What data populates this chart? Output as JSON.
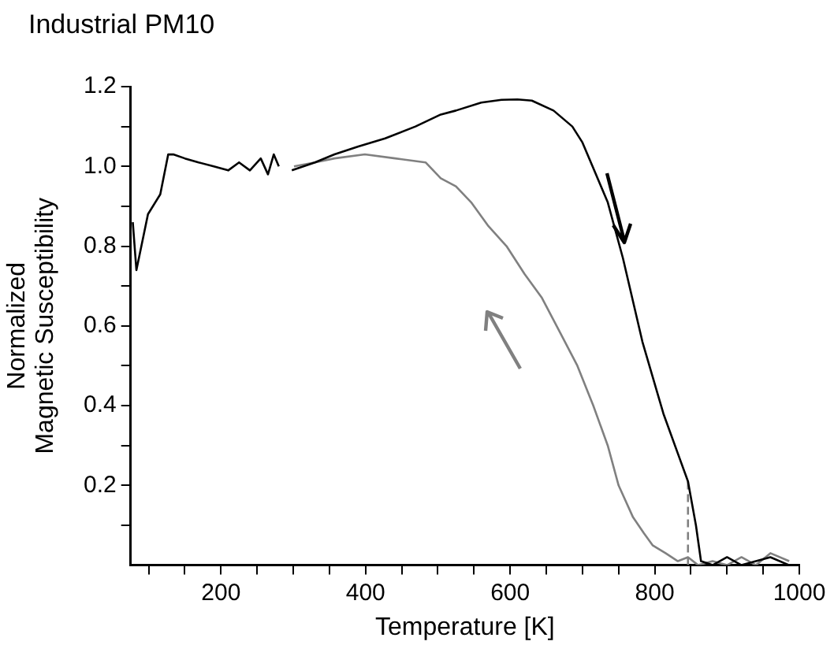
{
  "chart_data": {
    "type": "line",
    "title": "Industrial PM10",
    "xlabel": "Temperature [K]",
    "ylabel": "Normalized Magnetic Susceptibility",
    "marker": "none",
    "grid": false,
    "legend": false,
    "xlim": [
      75,
      1000
    ],
    "ylim": [
      0,
      1.2
    ],
    "xticks": [
      {
        "value": 100,
        "label": null
      },
      {
        "value": 150,
        "label": null
      },
      200,
      {
        "value": 250,
        "label": null
      },
      {
        "value": 300,
        "label": null
      },
      {
        "value": 350,
        "label": null
      },
      400,
      {
        "value": 450,
        "label": null
      },
      {
        "value": 500,
        "label": null
      },
      {
        "value": 550,
        "label": null
      },
      600,
      {
        "value": 650,
        "label": null
      },
      {
        "value": 700,
        "label": null
      },
      {
        "value": 750,
        "label": null
      },
      800,
      {
        "value": 850,
        "label": null
      },
      {
        "value": 900,
        "label": null
      },
      {
        "value": 950,
        "label": null
      },
      1000
    ],
    "yticks": [
      {
        "value": 0.1,
        "label": null
      },
      0.2,
      {
        "value": 0.3,
        "label": null
      },
      0.4,
      {
        "value": 0.5,
        "label": null
      },
      0.6,
      {
        "value": 0.7,
        "label": null
      },
      0.8,
      {
        "value": 0.9,
        "label": null
      },
      {
        "value": 1.0,
        "label": "1.0"
      },
      {
        "value": 1.1,
        "label": null
      },
      1.2
    ],
    "series": [
      {
        "color": "#000000",
        "line_style": "solid",
        "x": [
          78,
          83,
          99,
          116,
          127,
          134,
          150,
          169,
          190,
          210,
          225,
          240,
          255,
          265,
          273,
          280,
          290,
          298,
          330,
          357,
          390,
          427,
          469,
          504,
          525,
          560,
          588,
          610,
          630,
          660,
          686,
          700,
          714,
          735,
          756,
          783,
          812,
          832,
          846,
          857,
          864,
          880,
          900,
          920,
          940,
          960,
          986
        ],
        "values": [
          0.86,
          0.74,
          0.88,
          0.93,
          1.03,
          1.03,
          1.02,
          1.01,
          1.0,
          0.99,
          1.01,
          0.99,
          1.02,
          0.98,
          1.03,
          1.0,
          null,
          0.99,
          1.01,
          1.03,
          1.05,
          1.07,
          1.1,
          1.13,
          1.14,
          1.16,
          1.167,
          1.168,
          1.165,
          1.14,
          1.1,
          1.06,
          1.0,
          0.91,
          0.77,
          0.56,
          0.38,
          0.28,
          0.21,
          0.1,
          0.01,
          0.0,
          0.02,
          0.0,
          0.01,
          0.02,
          0.0
        ]
      },
      {
        "color": "#808080",
        "line_style": "solid",
        "x": [
          986,
          960,
          940,
          920,
          900,
          880,
          860,
          846,
          832,
          815,
          797,
          785,
          770,
          750,
          735,
          715,
          693,
          670,
          644,
          620,
          595,
          570,
          546,
          525,
          504,
          483,
          441,
          399,
          357,
          330,
          301
        ],
        "values": [
          0.01,
          0.03,
          0.0,
          0.02,
          0.0,
          0.01,
          0.0,
          0.02,
          0.01,
          0.03,
          0.05,
          0.08,
          0.12,
          0.2,
          0.3,
          0.4,
          0.5,
          0.58,
          0.67,
          0.73,
          0.8,
          0.85,
          0.91,
          0.95,
          0.97,
          1.01,
          1.02,
          1.03,
          1.02,
          1.01,
          1.0
        ]
      },
      {
        "color": "#808080",
        "line_style": "dashed",
        "x": [
          846,
          846
        ],
        "values": [
          0,
          0.21
        ]
      }
    ]
  }
}
